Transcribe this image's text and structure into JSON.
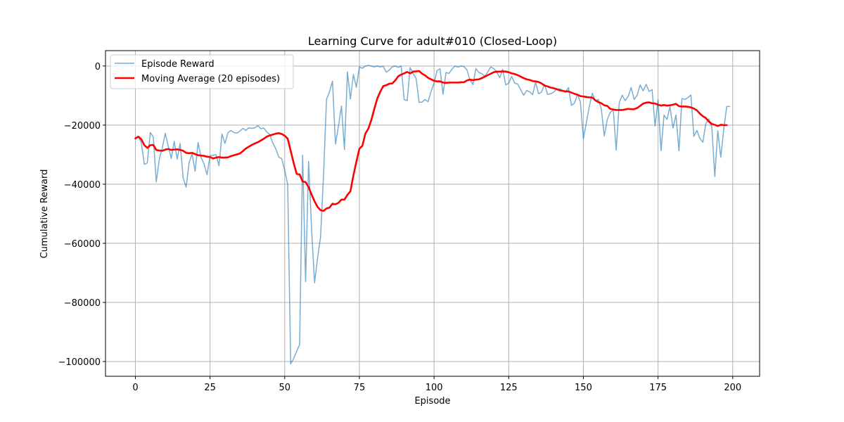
{
  "chart_data": {
    "type": "line",
    "title": "Learning Curve for adult#010 (Closed-Loop)",
    "xlabel": "Episode",
    "ylabel": "Cumulative Reward",
    "xlim": [
      -10,
      209
    ],
    "ylim": [
      -105000,
      5200
    ],
    "xticks": [
      0,
      25,
      50,
      75,
      100,
      125,
      150,
      175,
      200
    ],
    "yticks": [
      0,
      -20000,
      -40000,
      -60000,
      -80000,
      -100000
    ],
    "grid": true,
    "legend_position": "top-left",
    "series": [
      {
        "name": "Episode Reward",
        "color": "#1f77b4",
        "opacity": 0.6,
        "width": 1.5,
        "values": [
          -24300,
          -24000,
          -26000,
          -33300,
          -32800,
          -22500,
          -24000,
          -39200,
          -31600,
          -27800,
          -22800,
          -27000,
          -31300,
          -25500,
          -31500,
          -26200,
          -37900,
          -41000,
          -32600,
          -29800,
          -35600,
          -25900,
          -30900,
          -33200,
          -36800,
          -30400,
          -30200,
          -30000,
          -33800,
          -23000,
          -26200,
          -22600,
          -21800,
          -22500,
          -22700,
          -22000,
          -21100,
          -21800,
          -20900,
          -21100,
          -20900,
          -20200,
          -21200,
          -21000,
          -22300,
          -23200,
          -26000,
          -28000,
          -30800,
          -31400,
          -35300,
          -40100,
          -100800,
          -99000,
          -96600,
          -94200,
          -30200,
          -73000,
          -32300,
          -55100,
          -73400,
          -65000,
          -57900,
          -37000,
          -11300,
          -8700,
          -5100,
          -26400,
          -20300,
          -13500,
          -28300,
          -2000,
          -11100,
          -2900,
          -7200,
          -300,
          -800,
          0,
          200,
          0,
          -300,
          0,
          -300,
          -100,
          -2100,
          -1400,
          -300,
          0,
          -500,
          0,
          -11400,
          -11700,
          -500,
          -2600,
          -4200,
          -12300,
          -12200,
          -11300,
          -12100,
          -8600,
          -5800,
          -1600,
          -900,
          -9600,
          -2200,
          -2500,
          -1100,
          0,
          -400,
          0,
          -200,
          -1300,
          -4600,
          -6300,
          -900,
          -2200,
          -2600,
          -3500,
          -2000,
          -300,
          -900,
          -2000,
          -4000,
          -1100,
          -6400,
          -5800,
          -3500,
          -5800,
          -6100,
          -8000,
          -9900,
          -8300,
          -8700,
          -9700,
          -5500,
          -9400,
          -8800,
          -6200,
          -9600,
          -9400,
          -8900,
          -7900,
          -7700,
          -8200,
          -8900,
          -7300,
          -13300,
          -12600,
          -9600,
          -12200,
          -24600,
          -19200,
          -13600,
          -9200,
          -11800,
          -11300,
          -14500,
          -23700,
          -18100,
          -15700,
          -14700,
          -28500,
          -12500,
          -9900,
          -11700,
          -10300,
          -7300,
          -11300,
          -9900,
          -6400,
          -8400,
          -6200,
          -8600,
          -8000,
          -20300,
          -11400,
          -28700,
          -16600,
          -18100,
          -13800,
          -21000,
          -16600,
          -28700,
          -11000,
          -11300,
          -10700,
          -9800,
          -23800,
          -21800,
          -24500,
          -25800,
          -19500,
          -17900,
          -20600,
          -37400,
          -21900,
          -30900,
          -21400,
          -13700,
          -13700
        ]
      },
      {
        "name": "Moving Average (20 episodes)",
        "color": "#ff0000",
        "opacity": 1,
        "width": 2.6,
        "values": [
          -24500,
          -23900,
          -24800,
          -26800,
          -27700,
          -26800,
          -26700,
          -28400,
          -28600,
          -28700,
          -28300,
          -28100,
          -28400,
          -28300,
          -28200,
          -28400,
          -28700,
          -29400,
          -29500,
          -29400,
          -29800,
          -30200,
          -30300,
          -30400,
          -30700,
          -30800,
          -31300,
          -31000,
          -30800,
          -31000,
          -31000,
          -30900,
          -30500,
          -30200,
          -29900,
          -29600,
          -28800,
          -27900,
          -27300,
          -26700,
          -26200,
          -25800,
          -25200,
          -24600,
          -23900,
          -23500,
          -23200,
          -22900,
          -22700,
          -23000,
          -23600,
          -24600,
          -28700,
          -32800,
          -36500,
          -36700,
          -39100,
          -39300,
          -41000,
          -43500,
          -45800,
          -47700,
          -48800,
          -49000,
          -48200,
          -47900,
          -46600,
          -46800,
          -46300,
          -45200,
          -45200,
          -43600,
          -42400,
          -37000,
          -32400,
          -28000,
          -27000,
          -22900,
          -21200,
          -18300,
          -14500,
          -11000,
          -8700,
          -6800,
          -6500,
          -6000,
          -5900,
          -4900,
          -3500,
          -2900,
          -2500,
          -2000,
          -2500,
          -1900,
          -1800,
          -1700,
          -2600,
          -3200,
          -4000,
          -4500,
          -5000,
          -5200,
          -5200,
          -5600,
          -5700,
          -5600,
          -5600,
          -5600,
          -5600,
          -5500,
          -5500,
          -4900,
          -4600,
          -4800,
          -4600,
          -4500,
          -4100,
          -3600,
          -3100,
          -2600,
          -2100,
          -1900,
          -1900,
          -1800,
          -1900,
          -2100,
          -2500,
          -2700,
          -3100,
          -3600,
          -4100,
          -4500,
          -4700,
          -5100,
          -5200,
          -5400,
          -5900,
          -6600,
          -6900,
          -7300,
          -7500,
          -7800,
          -8200,
          -8400,
          -8600,
          -8600,
          -9000,
          -9400,
          -9700,
          -10200,
          -10300,
          -10500,
          -10600,
          -10700,
          -11600,
          -12200,
          -12600,
          -13300,
          -13500,
          -14500,
          -14700,
          -14900,
          -14900,
          -14900,
          -14700,
          -14500,
          -14600,
          -14600,
          -14200,
          -13500,
          -12700,
          -12400,
          -12300,
          -12600,
          -12700,
          -13100,
          -13400,
          -13200,
          -13400,
          -13300,
          -13100,
          -12800,
          -13600,
          -13700,
          -13700,
          -13800,
          -14000,
          -14400,
          -15000,
          -16100,
          -17000,
          -17600,
          -18800,
          -19600,
          -19900,
          -20300,
          -19900,
          -20000,
          -20000
        ]
      }
    ]
  }
}
